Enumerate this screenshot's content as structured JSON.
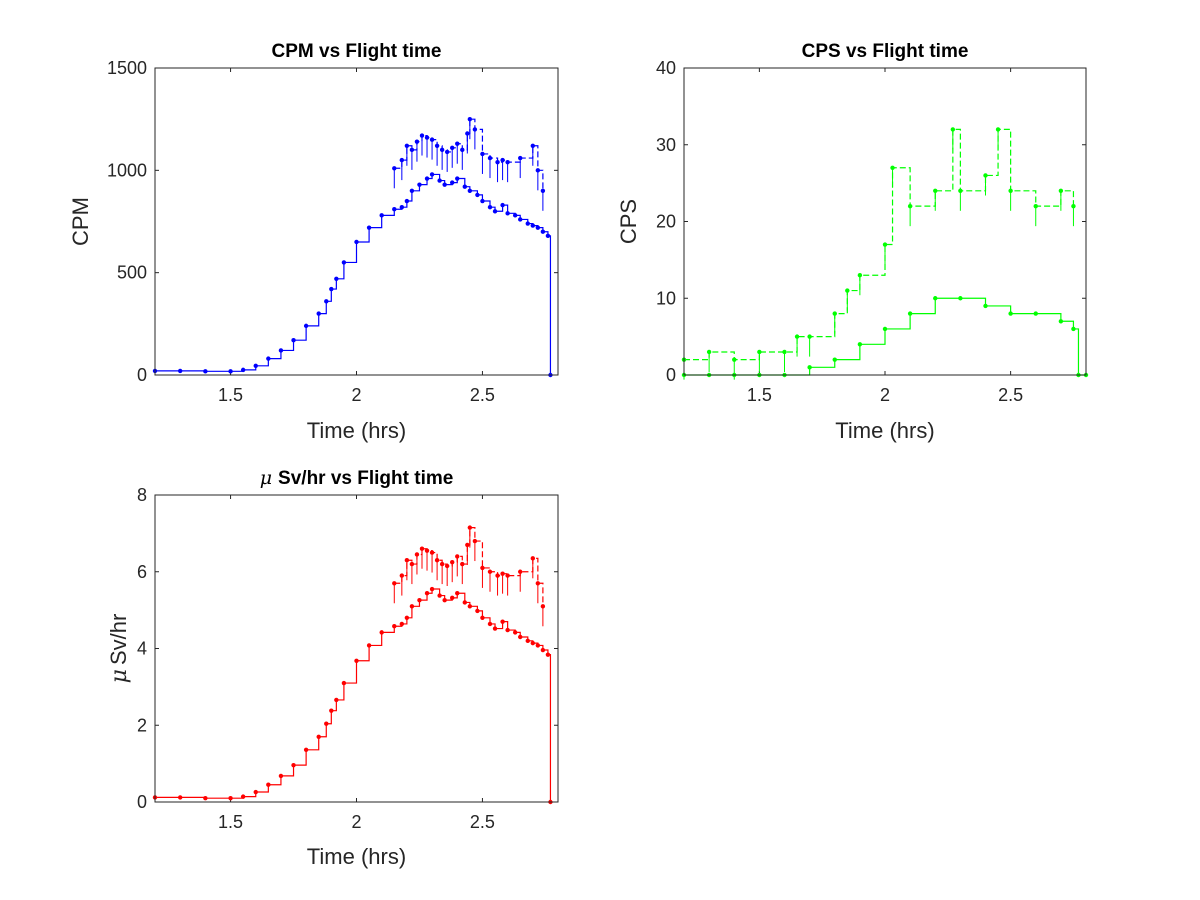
{
  "chart_data": [
    {
      "type": "line",
      "title": "CPM vs Flight time",
      "xlabel": "Time (hrs)",
      "ylabel": "CPM",
      "xlim": [
        1.2,
        2.8
      ],
      "ylim": [
        0,
        1500
      ],
      "xticks": [
        1.5,
        2,
        2.5
      ],
      "xtick_labels": [
        "1.5",
        "2",
        "2.5"
      ],
      "yticks": [
        0,
        500,
        1000,
        1500
      ],
      "ytick_labels": [
        "0",
        "500",
        "1000",
        "1500"
      ],
      "grid": false,
      "color": "#0000ff",
      "marker": "dot",
      "series": [
        {
          "x": [
            1.2,
            1.3,
            1.4,
            1.5,
            1.55,
            1.6,
            1.65,
            1.7,
            1.75,
            1.8,
            1.85,
            1.88,
            1.9,
            1.92,
            1.95,
            2.0,
            2.05,
            2.1,
            2.15,
            2.18,
            2.2,
            2.22,
            2.25,
            2.28,
            2.3,
            2.33,
            2.35,
            2.38,
            2.4,
            2.43,
            2.45,
            2.48,
            2.5,
            2.53,
            2.55,
            2.58,
            2.6,
            2.63,
            2.65,
            2.68,
            2.7,
            2.72,
            2.74,
            2.76,
            2.77
          ],
          "y": [
            20,
            20,
            18,
            18,
            25,
            45,
            80,
            120,
            170,
            240,
            300,
            360,
            420,
            470,
            550,
            650,
            720,
            780,
            810,
            820,
            850,
            900,
            930,
            960,
            980,
            950,
            930,
            940,
            960,
            920,
            900,
            880,
            850,
            820,
            800,
            830,
            790,
            780,
            760,
            740,
            730,
            720,
            700,
            680,
            0
          ]
        },
        {
          "x": [
            2.15,
            2.18,
            2.2,
            2.22,
            2.24,
            2.26,
            2.28,
            2.3,
            2.32,
            2.34,
            2.36,
            2.38,
            2.4,
            2.42,
            2.44,
            2.45,
            2.47,
            2.5,
            2.53,
            2.56,
            2.58,
            2.6,
            2.65,
            2.7,
            2.72,
            2.74
          ],
          "y": [
            1010,
            1050,
            1120,
            1100,
            1140,
            1170,
            1160,
            1150,
            1120,
            1100,
            1090,
            1110,
            1130,
            1100,
            1180,
            1250,
            1200,
            1080,
            1060,
            1040,
            1050,
            1040,
            1060,
            1120,
            1000,
            900
          ]
        }
      ]
    },
    {
      "type": "line",
      "title": "CPS vs Flight time",
      "xlabel": "Time (hrs)",
      "ylabel": "CPS",
      "xlim": [
        1.2,
        2.8
      ],
      "ylim": [
        0,
        40
      ],
      "xticks": [
        1.5,
        2,
        2.5
      ],
      "xtick_labels": [
        "1.5",
        "2",
        "2.5"
      ],
      "yticks": [
        0,
        10,
        20,
        30,
        40
      ],
      "ytick_labels": [
        "0",
        "10",
        "20",
        "30",
        "40"
      ],
      "grid": false,
      "color": "#00ff00",
      "marker": "dot",
      "series": [
        {
          "x": [
            1.2,
            1.3,
            1.4,
            1.5,
            1.6,
            1.7,
            1.8,
            1.9,
            2.0,
            2.1,
            2.2,
            2.3,
            2.4,
            2.5,
            2.6,
            2.7,
            2.75,
            2.77,
            2.8
          ],
          "y": [
            0,
            0,
            0,
            0,
            0,
            1,
            2,
            4,
            6,
            8,
            10,
            10,
            9,
            8,
            8,
            7,
            6,
            0,
            0
          ]
        },
        {
          "x": [
            1.2,
            1.3,
            1.4,
            1.5,
            1.6,
            1.65,
            1.7,
            1.8,
            1.85,
            1.9,
            2.0,
            2.03,
            2.1,
            2.2,
            2.27,
            2.3,
            2.4,
            2.45,
            2.5,
            2.6,
            2.7,
            2.75
          ],
          "y": [
            2,
            3,
            2,
            3,
            3,
            5,
            5,
            8,
            11,
            13,
            17,
            27,
            22,
            24,
            32,
            24,
            26,
            32,
            24,
            22,
            24,
            22
          ]
        }
      ]
    },
    {
      "type": "line",
      "title_symbol": "μ",
      "title": "Sv/hr vs Flight time",
      "xlabel": "Time (hrs)",
      "ylabel_symbol": "μ",
      "ylabel": "Sv/hr",
      "xlim": [
        1.2,
        2.8
      ],
      "ylim": [
        0,
        8
      ],
      "xticks": [
        1.5,
        2,
        2.5
      ],
      "xtick_labels": [
        "1.5",
        "2",
        "2.5"
      ],
      "yticks": [
        0,
        2,
        4,
        6,
        8
      ],
      "ytick_labels": [
        "0",
        "2",
        "4",
        "6",
        "8"
      ],
      "grid": false,
      "color": "#ff0000",
      "marker": "dot",
      "series": [
        {
          "x": [
            1.2,
            1.3,
            1.4,
            1.5,
            1.55,
            1.6,
            1.65,
            1.7,
            1.75,
            1.8,
            1.85,
            1.88,
            1.9,
            1.92,
            1.95,
            2.0,
            2.05,
            2.1,
            2.15,
            2.18,
            2.2,
            2.22,
            2.25,
            2.28,
            2.3,
            2.33,
            2.35,
            2.38,
            2.4,
            2.43,
            2.45,
            2.48,
            2.5,
            2.53,
            2.55,
            2.58,
            2.6,
            2.63,
            2.65,
            2.68,
            2.7,
            2.72,
            2.74,
            2.76,
            2.77
          ],
          "y": [
            0.12,
            0.12,
            0.1,
            0.1,
            0.14,
            0.26,
            0.45,
            0.68,
            0.96,
            1.36,
            1.7,
            2.04,
            2.38,
            2.66,
            3.1,
            3.68,
            4.08,
            4.42,
            4.58,
            4.64,
            4.8,
            5.1,
            5.26,
            5.44,
            5.55,
            5.38,
            5.26,
            5.32,
            5.44,
            5.2,
            5.1,
            4.98,
            4.8,
            4.64,
            4.52,
            4.7,
            4.48,
            4.42,
            4.3,
            4.2,
            4.14,
            4.08,
            3.96,
            3.84,
            0
          ]
        },
        {
          "x": [
            2.15,
            2.18,
            2.2,
            2.22,
            2.24,
            2.26,
            2.28,
            2.3,
            2.32,
            2.34,
            2.36,
            2.38,
            2.4,
            2.42,
            2.44,
            2.45,
            2.47,
            2.5,
            2.53,
            2.56,
            2.58,
            2.6,
            2.65,
            2.7,
            2.72,
            2.74
          ],
          "y": [
            5.7,
            5.9,
            6.3,
            6.2,
            6.45,
            6.6,
            6.55,
            6.5,
            6.3,
            6.2,
            6.15,
            6.25,
            6.4,
            6.2,
            6.7,
            7.15,
            6.8,
            6.1,
            6.0,
            5.9,
            5.95,
            5.9,
            6.0,
            6.35,
            5.7,
            5.1
          ]
        }
      ]
    }
  ]
}
